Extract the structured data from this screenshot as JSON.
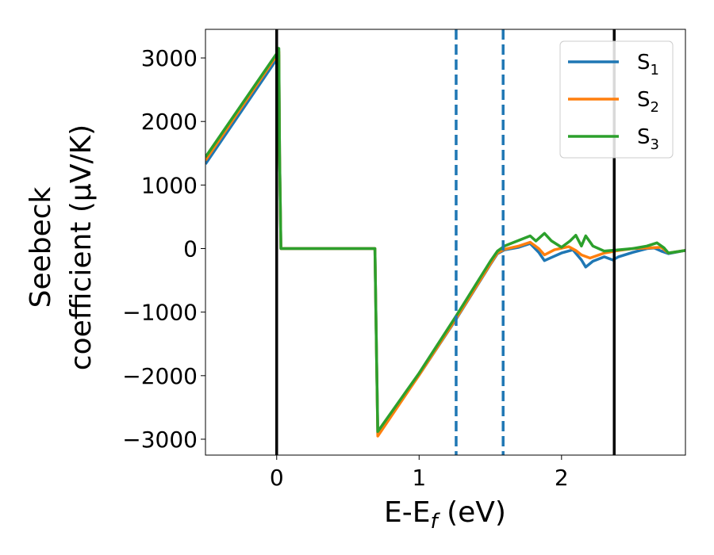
{
  "chart_data": {
    "type": "line",
    "xlabel": "E-E_f (eV)",
    "ylabel": "Seebeck coefficient (µV/K)",
    "ylabel_lines": [
      "Seebeck",
      "coefficient  (µV/K)"
    ],
    "xlim": [
      -0.5,
      2.87
    ],
    "ylim": [
      -3250,
      3450
    ],
    "xticks": [
      0,
      1,
      2
    ],
    "xtick_labels": [
      "0",
      "1",
      "2"
    ],
    "yticks": [
      3000,
      2000,
      1000,
      0,
      -1000,
      -2000,
      -3000
    ],
    "ytick_labels": [
      "3000",
      "2000",
      "1000",
      "0",
      "−1000",
      "−2000",
      "−3000"
    ],
    "grid": false,
    "legend_position": "top-right",
    "vlines": [
      {
        "x": 0.0,
        "style": "solid",
        "color": "#000000"
      },
      {
        "x": 2.37,
        "style": "solid",
        "color": "#000000"
      },
      {
        "x": 1.26,
        "style": "dashed",
        "color": "#1f77b4"
      },
      {
        "x": 1.59,
        "style": "dashed",
        "color": "#1f77b4"
      }
    ],
    "series": [
      {
        "name": "S1",
        "name_base": "S",
        "name_sub": "1",
        "color": "#1f77b4",
        "x": [
          -0.5,
          0.0,
          0.015,
          0.02,
          0.03,
          0.5,
          0.69,
          0.7,
          0.71,
          1.0,
          1.26,
          1.5,
          1.55,
          1.6,
          1.7,
          1.78,
          1.84,
          1.88,
          1.93,
          2.0,
          2.08,
          2.14,
          2.17,
          2.22,
          2.3,
          2.36,
          2.4,
          2.5,
          2.6,
          2.65,
          2.7,
          2.75,
          2.87
        ],
        "y": [
          1330,
          2980,
          3050,
          1500,
          0,
          0,
          0,
          -1500,
          -2920,
          -1990,
          -1110,
          -250,
          -80,
          -20,
          20,
          80,
          -60,
          -190,
          -140,
          -70,
          -20,
          -180,
          -290,
          -200,
          -130,
          -180,
          -130,
          -60,
          0,
          10,
          -40,
          -80,
          -30
        ]
      },
      {
        "name": "S2",
        "name_base": "S",
        "name_sub": "2",
        "color": "#ff7f0e",
        "x": [
          -0.5,
          0.0,
          0.015,
          0.02,
          0.03,
          0.5,
          0.69,
          0.7,
          0.71,
          1.0,
          1.26,
          1.5,
          1.55,
          1.6,
          1.7,
          1.78,
          1.84,
          1.88,
          1.95,
          2.05,
          2.1,
          2.14,
          2.2,
          2.3,
          2.4,
          2.5,
          2.6,
          2.7,
          2.75,
          2.87
        ],
        "y": [
          1390,
          3040,
          3100,
          1500,
          0,
          0,
          0,
          -1500,
          -2950,
          -1990,
          -1100,
          -240,
          -70,
          -10,
          40,
          100,
          0,
          -100,
          -20,
          30,
          -30,
          -100,
          -150,
          -70,
          -30,
          0,
          10,
          20,
          -70,
          -30
        ]
      },
      {
        "name": "S3",
        "name_base": "S",
        "name_sub": "3",
        "color": "#2ca02c",
        "x": [
          -0.5,
          0.0,
          0.015,
          0.02,
          0.03,
          0.5,
          0.69,
          0.7,
          0.71,
          1.0,
          1.26,
          1.5,
          1.55,
          1.6,
          1.7,
          1.78,
          1.82,
          1.88,
          1.93,
          2.0,
          2.06,
          2.1,
          2.14,
          2.17,
          2.22,
          2.3,
          2.4,
          2.5,
          2.6,
          2.67,
          2.72,
          2.75,
          2.87
        ],
        "y": [
          1440,
          3070,
          3150,
          1500,
          0,
          0,
          0,
          -1500,
          -2880,
          -1960,
          -1060,
          -200,
          -40,
          40,
          130,
          200,
          120,
          240,
          120,
          20,
          120,
          210,
          40,
          200,
          40,
          -40,
          -20,
          0,
          40,
          90,
          10,
          -70,
          -30
        ]
      }
    ]
  }
}
